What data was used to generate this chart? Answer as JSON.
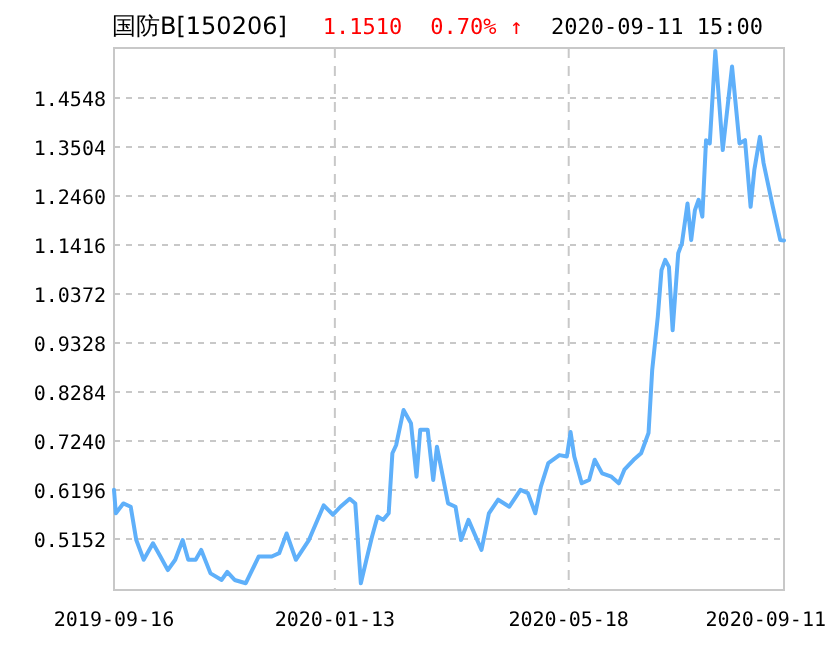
{
  "chart_data": {
    "type": "line",
    "title": "国防B[150206]",
    "annotations": [
      "1.1510",
      "0.70% ↑",
      "2020-09-11 15:00"
    ],
    "x": [
      "2019-09-16",
      "2019-09-17",
      "2019-09-21",
      "2019-09-25",
      "2019-09-28",
      "2019-10-02",
      "2019-10-07",
      "2019-10-11",
      "2019-10-15",
      "2019-10-19",
      "2019-10-23",
      "2019-10-26",
      "2019-10-30",
      "2019-11-02",
      "2019-11-07",
      "2019-11-13",
      "2019-11-16",
      "2019-11-20",
      "2019-11-26",
      "2019-12-03",
      "2019-12-10",
      "2019-12-14",
      "2019-12-18",
      "2019-12-23",
      "2019-12-30",
      "2020-01-07",
      "2020-01-12",
      "2020-01-16",
      "2020-01-21",
      "2020-01-24",
      "2020-01-27",
      "2020-01-30",
      "2020-02-02",
      "2020-02-05",
      "2020-02-08",
      "2020-02-11",
      "2020-02-13",
      "2020-02-15",
      "2020-02-19",
      "2020-02-23",
      "2020-02-26",
      "2020-02-28",
      "2020-03-03",
      "2020-03-06",
      "2020-03-08",
      "2020-03-14",
      "2020-03-18",
      "2020-03-21",
      "2020-03-25",
      "2020-04-01",
      "2020-04-05",
      "2020-04-10",
      "2020-04-16",
      "2020-04-22",
      "2020-04-26",
      "2020-04-30",
      "2020-05-03",
      "2020-05-07",
      "2020-05-13",
      "2020-05-17",
      "2020-05-19",
      "2020-05-21",
      "2020-05-25",
      "2020-05-29",
      "2020-06-01",
      "2020-06-05",
      "2020-06-10",
      "2020-06-14",
      "2020-06-17",
      "2020-06-22",
      "2020-06-26",
      "2020-06-30",
      "2020-07-02",
      "2020-07-05",
      "2020-07-07",
      "2020-07-09",
      "2020-07-11",
      "2020-07-13",
      "2020-07-16",
      "2020-07-18",
      "2020-07-21",
      "2020-07-23",
      "2020-07-25",
      "2020-07-27",
      "2020-07-29",
      "2020-07-31",
      "2020-08-02",
      "2020-08-05",
      "2020-08-09",
      "2020-08-14",
      "2020-08-18",
      "2020-08-21",
      "2020-08-24",
      "2020-08-26",
      "2020-08-29",
      "2020-08-31",
      "2020-09-05",
      "2020-09-09",
      "2020-09-11"
    ],
    "series": [
      {
        "color": "#5fb0fa",
        "values": [
          0.62,
          0.57,
          0.591,
          0.584,
          0.513,
          0.471,
          0.506,
          0.478,
          0.449,
          0.471,
          0.513,
          0.471,
          0.471,
          0.492,
          0.442,
          0.428,
          0.445,
          0.428,
          0.421,
          0.478,
          0.478,
          0.485,
          0.527,
          0.471,
          0.513,
          0.587,
          0.567,
          0.584,
          0.601,
          0.591,
          0.421,
          0.471,
          0.52,
          0.563,
          0.556,
          0.57,
          0.698,
          0.715,
          0.79,
          0.762,
          0.648,
          0.748,
          0.748,
          0.641,
          0.712,
          0.591,
          0.584,
          0.513,
          0.556,
          0.492,
          0.57,
          0.599,
          0.584,
          0.62,
          0.613,
          0.57,
          0.627,
          0.677,
          0.694,
          0.691,
          0.743,
          0.691,
          0.634,
          0.641,
          0.684,
          0.655,
          0.648,
          0.634,
          0.663,
          0.684,
          0.698,
          0.741,
          0.876,
          0.989,
          1.088,
          1.11,
          1.095,
          0.96,
          1.124,
          1.145,
          1.23,
          1.152,
          1.216,
          1.238,
          1.202,
          1.365,
          1.358,
          1.555,
          1.344,
          1.522,
          1.358,
          1.365,
          1.223,
          1.301,
          1.372,
          1.316,
          1.223,
          1.152,
          1.151
        ]
      }
    ],
    "xlim": [
      "2019-09-16",
      "2020-09-11"
    ],
    "xticks": [
      "2019-09-16",
      "2020-01-13",
      "2020-05-18",
      "2020-09-11"
    ],
    "ylim": [
      0.4066,
      1.5613
    ],
    "yticks": [
      0.5152,
      0.6196,
      {
        "value": 0.724,
        "label": "0.7240"
      },
      0.8284,
      0.9328,
      1.0372,
      1.1416,
      {
        "value": 1.246,
        "label": "1.2460"
      },
      1.3504,
      1.4548
    ],
    "grid": true,
    "marker": "none",
    "line_style": "solid"
  }
}
